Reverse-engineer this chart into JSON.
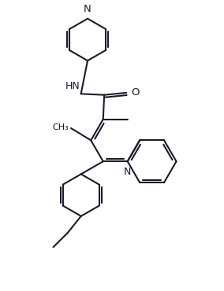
{
  "background_color": "#ffffff",
  "line_color": "#1a1a2e",
  "line_width": 1.5,
  "figsize": [
    2.84,
    3.7
  ],
  "dpi": 100,
  "xlim": [
    0,
    10
  ],
  "ylim": [
    0,
    13
  ]
}
